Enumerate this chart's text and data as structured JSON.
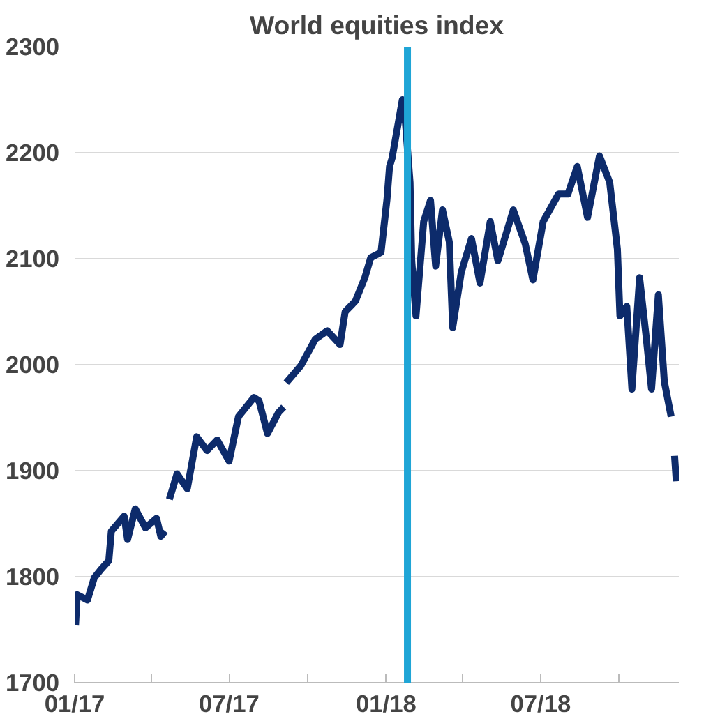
{
  "chart_data": {
    "type": "line",
    "title": "World equities index",
    "x": [
      "2017-01-02",
      "2017-01-04",
      "2017-01-16",
      "2017-01-24",
      "2017-02-01",
      "2017-02-10",
      "2017-02-13",
      "2017-02-28",
      "2017-03-04",
      "2017-03-13",
      "2017-03-25",
      "2017-04-07",
      "2017-04-12",
      "2017-04-17",
      "2017-04-20",
      "2017-04-22",
      "2017-05-01",
      "2017-05-13",
      "2017-05-24",
      "2017-06-05",
      "2017-06-17",
      "2017-07-01",
      "2017-07-12",
      "2017-07-30",
      "2017-08-05",
      "2017-08-15",
      "2017-08-28",
      "2017-09-03",
      "2017-09-05",
      "2017-09-06",
      "2017-09-23",
      "2017-10-10",
      "2017-10-24",
      "2017-11-08",
      "2017-11-14",
      "2017-11-26",
      "2017-12-07",
      "2017-12-14",
      "2017-12-26",
      "2018-01-02",
      "2018-01-05",
      "2018-01-08",
      "2018-01-20",
      "2018-01-23",
      "2018-01-29",
      "2018-01-31",
      "2018-02-05",
      "2018-02-14",
      "2018-02-22",
      "2018-02-28",
      "2018-03-08",
      "2018-03-16",
      "2018-03-20",
      "2018-03-30",
      "2018-04-11",
      "2018-04-21",
      "2018-05-03",
      "2018-05-12",
      "2018-05-30",
      "2018-06-13",
      "2018-06-22",
      "2018-07-04",
      "2018-07-22",
      "2018-08-02",
      "2018-08-13",
      "2018-08-25",
      "2018-09-08",
      "2018-09-20",
      "2018-09-29",
      "2018-10-02",
      "2018-10-10",
      "2018-10-16",
      "2018-10-25",
      "2018-11-02",
      "2018-11-08",
      "2018-11-16",
      "2018-11-23",
      "2018-12-01",
      "2018-12-03",
      "2018-12-05",
      "2018-12-07"
    ],
    "series": [
      {
        "color": "#0d2b6b",
        "values": [
          1754,
          1783,
          1778,
          1799,
          1807,
          1815,
          1843,
          1857,
          1835,
          1864,
          1846,
          1855,
          1838,
          1843,
          null,
          1873,
          1897,
          1883,
          1932,
          1919,
          1929,
          1909,
          1951,
          1969,
          1966,
          1935,
          1955,
          1960,
          null,
          1983,
          1999,
          2024,
          2032,
          2019,
          2050,
          2060,
          2082,
          2101,
          2106,
          2156,
          2187,
          2195,
          2250,
          2235,
          2172,
          2098,
          2046,
          2135,
          2155,
          2093,
          2146,
          2116,
          2035,
          2087,
          2119,
          2077,
          2135,
          2098,
          2146,
          2114,
          2080,
          2135,
          2161,
          2161,
          2187,
          2139,
          2197,
          2172,
          2109,
          2046,
          2055,
          1977,
          2082,
          2024,
          1977,
          2066,
          1984,
          1951,
          null,
          1914,
          1890
        ]
      }
    ],
    "xlim": [
      "2017-01-01",
      "2018-12-10"
    ],
    "xticks": [
      {
        "value": "2017-01-01",
        "label": "01/17"
      },
      {
        "value": "2017-04-01",
        "label": null
      },
      {
        "value": "2017-07-01",
        "label": "07/17"
      },
      {
        "value": "2017-10-01",
        "label": null
      },
      {
        "value": "2018-01-01",
        "label": "01/18"
      },
      {
        "value": "2018-04-01",
        "label": null
      },
      {
        "value": "2018-07-01",
        "label": "07/18"
      },
      {
        "value": "2018-10-01",
        "label": null
      }
    ],
    "ylim": [
      1700,
      2300
    ],
    "yticks": [
      1700,
      1800,
      1900,
      2000,
      2100,
      2200,
      2300
    ],
    "grid": "y",
    "marker": "none",
    "line_style": "solid",
    "ref_lines": [
      {
        "axis": "x",
        "value": "2018-01-26",
        "color": "#1fa5d6"
      }
    ]
  }
}
